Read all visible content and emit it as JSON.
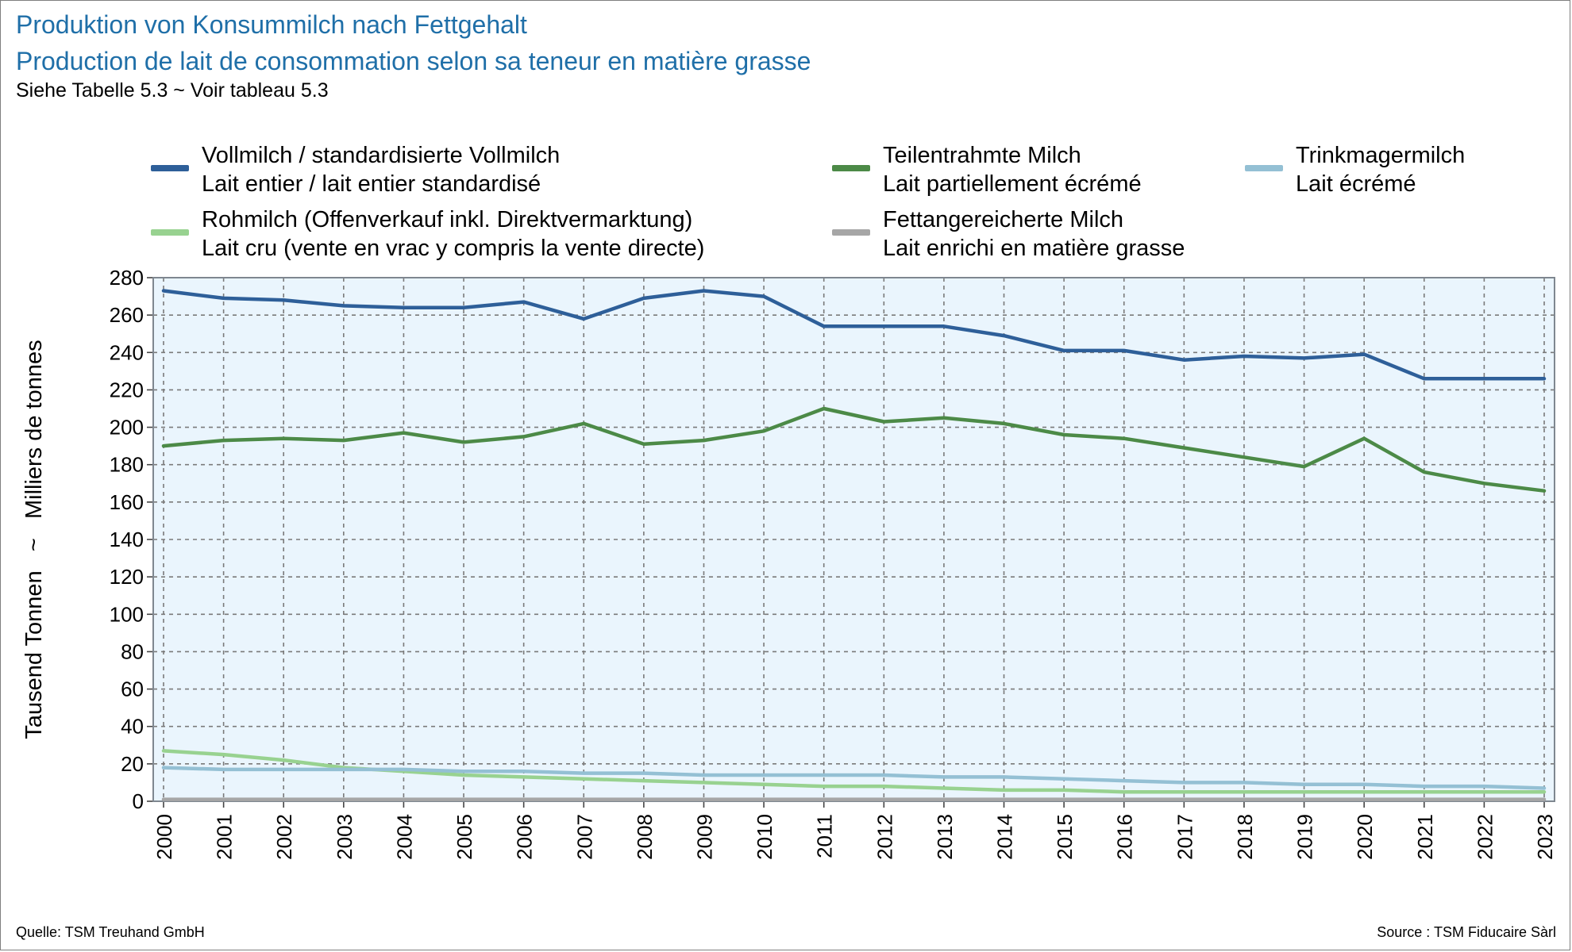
{
  "title_de": "Produktion von Konsummilch nach Fettgehalt",
  "title_fr": "Production de lait de consommation selon sa teneur en matière grasse",
  "note": "Siehe Tabelle 5.3  ~  Voir tableau 5.3",
  "source_de": "Quelle: TSM Treuhand GmbH",
  "source_fr": "Source : TSM Fiducaire Sàrl",
  "colors": {
    "title": "#1f6fa8",
    "plot_bg": "#eaf5fd",
    "grid": "#7a7a7a",
    "vollmilch": "#2e5f99",
    "teilentrahmt": "#4c8a47",
    "trinkmager": "#94c0d4",
    "rohmilch": "#98d290",
    "fettangereichert": "#a6a6a6"
  },
  "legend": [
    {
      "line1": "Vollmilch / standardisierte Vollmilch",
      "line2": "Lait entier / lait entier standardisé",
      "color": "#2e5f99"
    },
    {
      "line1": "Teilentrahmte Milch",
      "line2": "Lait partiellement écrémé",
      "color": "#4c8a47"
    },
    {
      "line1": "Trinkmagermilch",
      "line2": "Lait écrémé",
      "color": "#94c0d4"
    },
    {
      "line1": "Rohmilch (Offenverkauf inkl. Direktvermarktung)",
      "line2": "Lait cru (vente en vrac y compris la vente directe)",
      "color": "#98d290"
    },
    {
      "line1": "Fettangereicherte Milch",
      "line2": "Lait enrichi en matière grasse",
      "color": "#a6a6a6"
    }
  ],
  "chart_data": {
    "type": "line",
    "ylabel": "Tausend Tonnen   ~   Milliers de tonnes",
    "ylim": [
      0,
      280
    ],
    "yticks": [
      0,
      20,
      40,
      60,
      80,
      100,
      120,
      140,
      160,
      180,
      200,
      220,
      240,
      260,
      280
    ],
    "grid": true,
    "legend_position": "top",
    "x": [
      "2000",
      "2001",
      "2002",
      "2003",
      "2004",
      "2005",
      "2006",
      "2007",
      "2008",
      "2009",
      "2010",
      "2011",
      "2012",
      "2013",
      "2014",
      "2015",
      "2016",
      "2017",
      "2018",
      "2019",
      "2020",
      "2021",
      "2022",
      "2023"
    ],
    "series": [
      {
        "name": "Vollmilch / standardisierte Vollmilch — Lait entier / lait entier standardisé",
        "color": "#2e5f99",
        "values": [
          273,
          269,
          268,
          265,
          264,
          264,
          267,
          258,
          269,
          273,
          270,
          254,
          254,
          254,
          249,
          241,
          241,
          236,
          238,
          237,
          239,
          226,
          226,
          226
        ]
      },
      {
        "name": "Teilentrahmte Milch — Lait partiellement écrémé",
        "color": "#4c8a47",
        "values": [
          190,
          193,
          194,
          193,
          197,
          192,
          195,
          202,
          191,
          193,
          198,
          210,
          203,
          205,
          202,
          196,
          194,
          189,
          184,
          179,
          194,
          176,
          170,
          166
        ]
      },
      {
        "name": "Trinkmagermilch — Lait écrémé",
        "color": "#94c0d4",
        "values": [
          18,
          17,
          17,
          17,
          17,
          16,
          16,
          15,
          15,
          14,
          14,
          14,
          14,
          13,
          13,
          12,
          11,
          10,
          10,
          9,
          9,
          8,
          8,
          7
        ]
      },
      {
        "name": "Rohmilch (Offenverkauf inkl. Direktvermarktung) — Lait cru (vente en vrac y compris la vente directe)",
        "color": "#98d290",
        "values": [
          27,
          25,
          22,
          18,
          16,
          14,
          13,
          12,
          11,
          10,
          9,
          8,
          8,
          7,
          6,
          6,
          5,
          5,
          5,
          5,
          5,
          5,
          5,
          5
        ]
      },
      {
        "name": "Fettangereicherte Milch — Lait enrichi en matière grasse",
        "color": "#a6a6a6",
        "values": [
          1,
          1,
          1,
          1,
          1,
          1,
          1,
          1,
          1,
          1,
          1,
          1,
          1,
          1,
          1,
          1,
          1,
          1,
          1,
          1,
          1,
          1,
          1,
          1
        ]
      }
    ]
  }
}
